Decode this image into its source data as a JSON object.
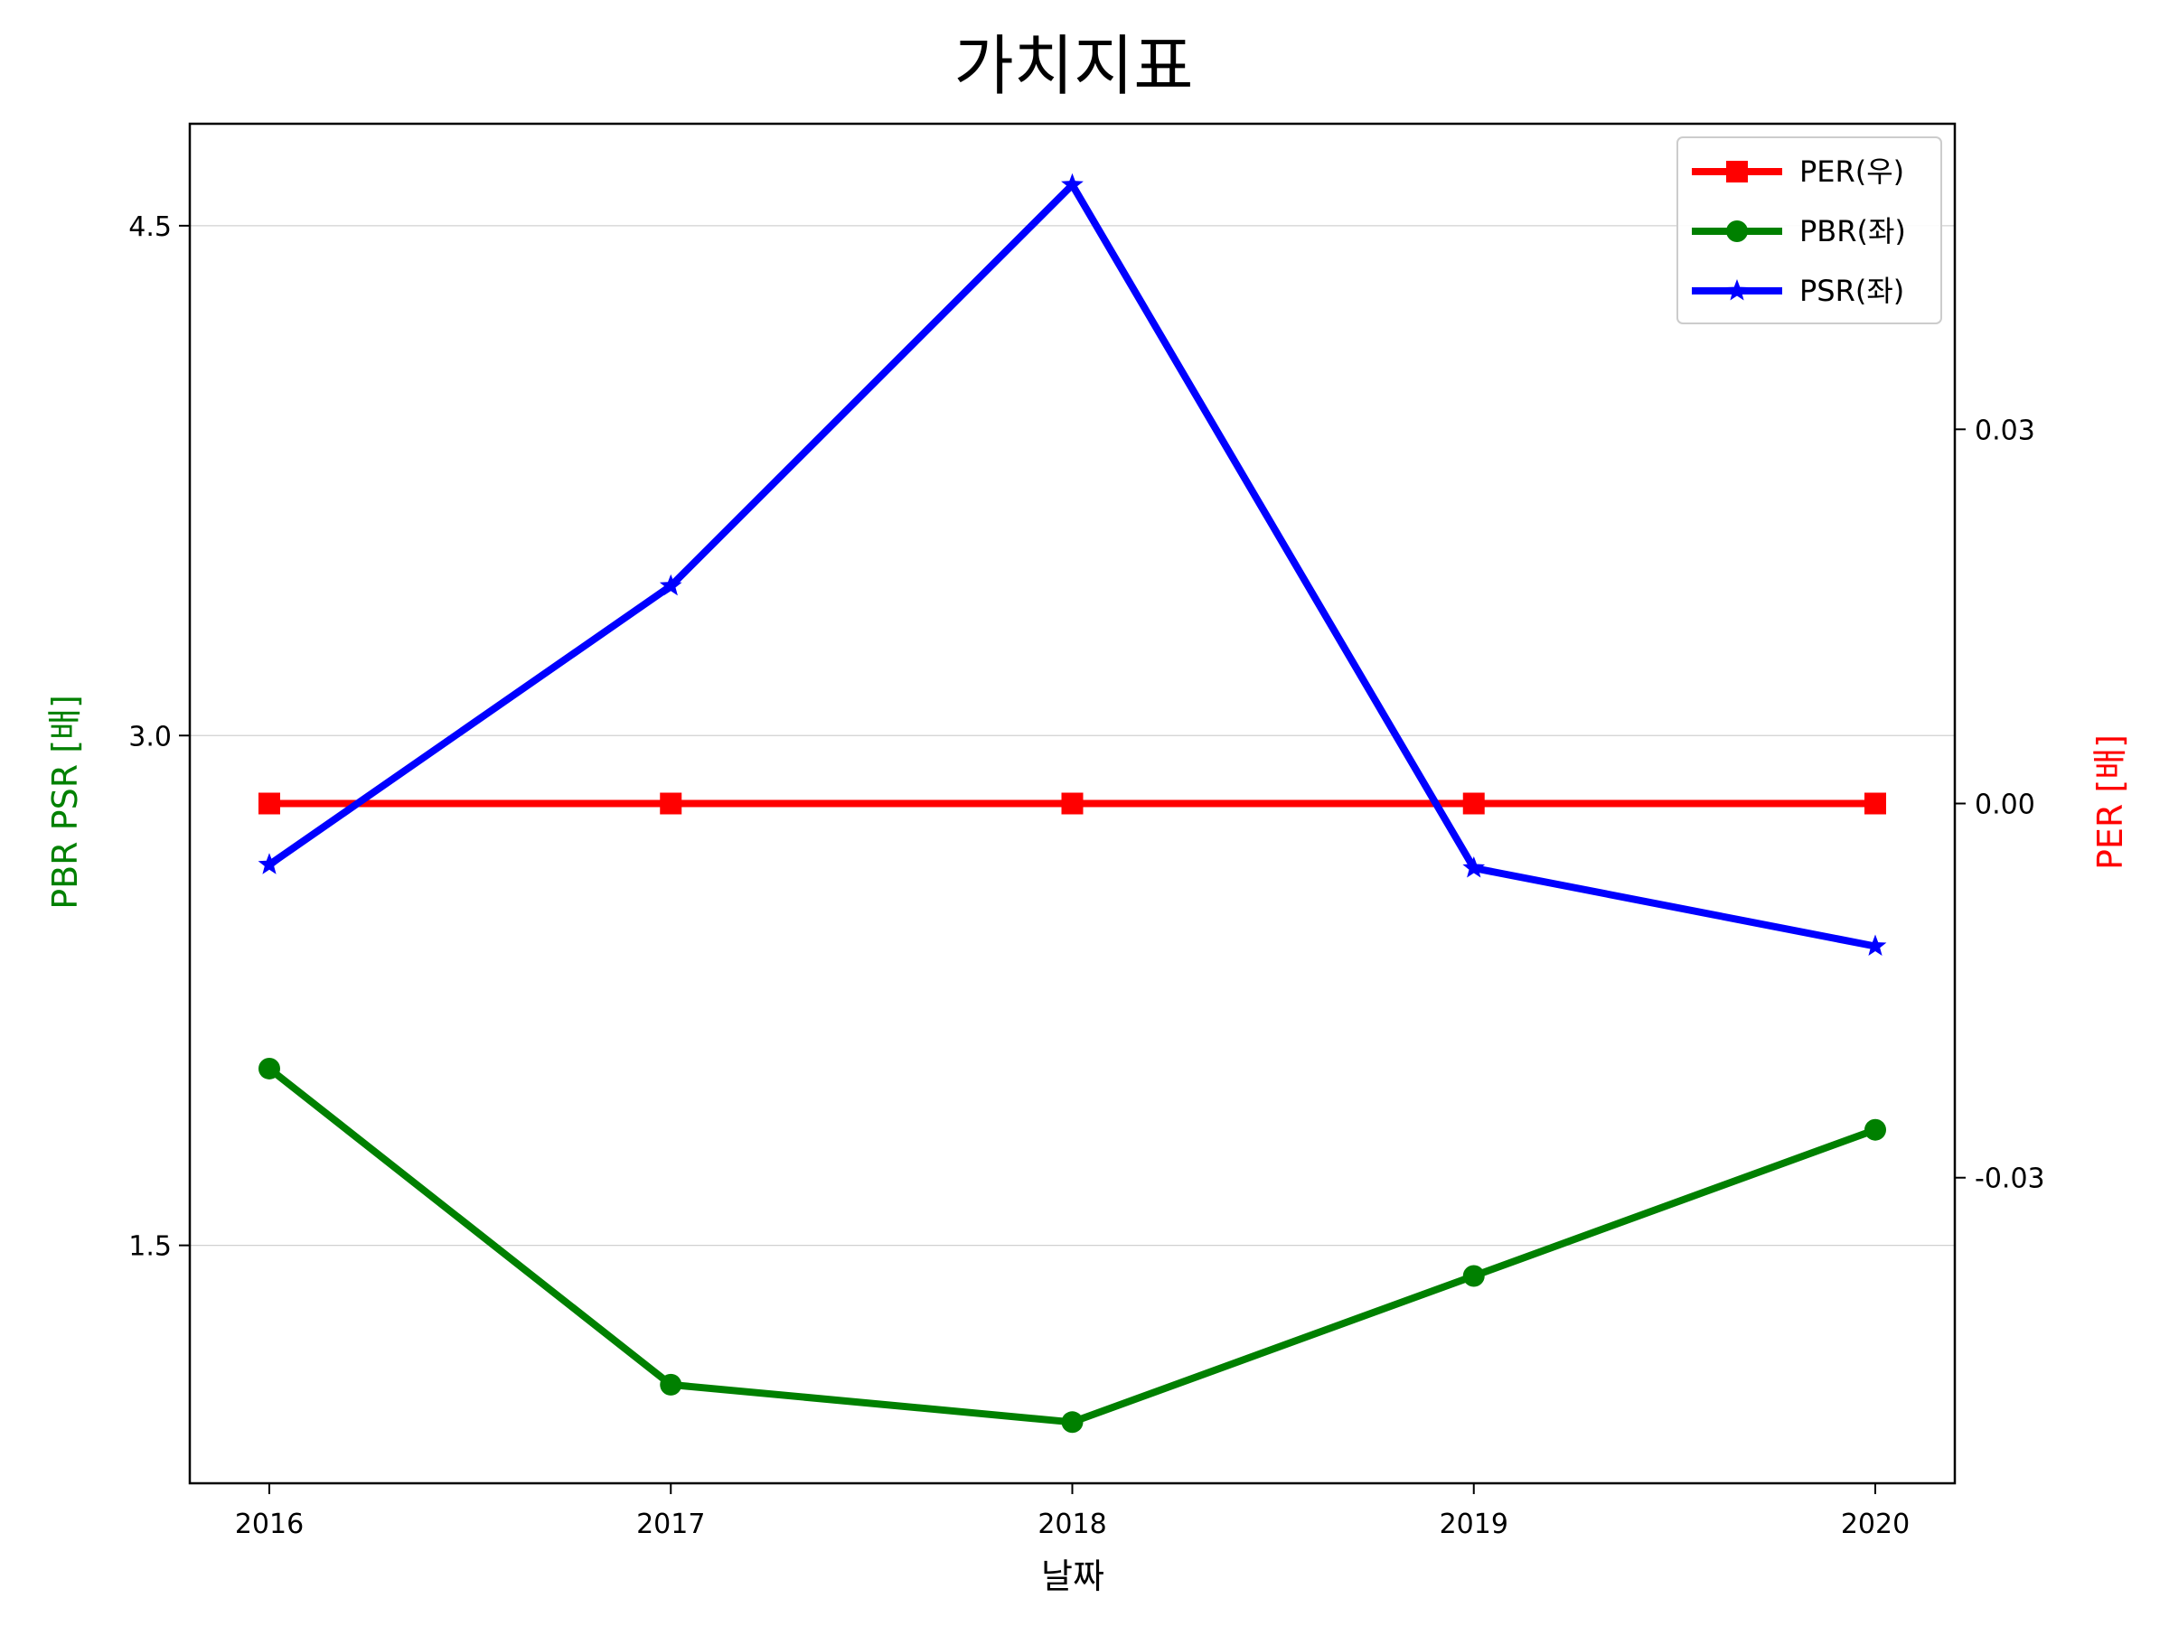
{
  "chart_data": {
    "type": "line",
    "title": "가치지표",
    "xlabel": "날짜",
    "ylabel_left": "PBR PSR [배]",
    "ylabel_right": "PER [배]",
    "categories": [
      "2016",
      "2017",
      "2018",
      "2019",
      "2020"
    ],
    "left_axis": {
      "ylim": [
        0.8,
        4.8
      ],
      "ticks": [
        1.5,
        3.0,
        4.5
      ],
      "tick_labels": [
        "1.5",
        "3.0",
        "4.5"
      ],
      "grid": true
    },
    "right_axis": {
      "ylim": [
        -0.0545,
        0.0545
      ],
      "ticks": [
        -0.03,
        0.0,
        0.03
      ],
      "tick_labels": [
        "-0.03",
        "0.00",
        "0.03"
      ]
    },
    "series": [
      {
        "name": "PER(우)",
        "axis": "right",
        "color": "#ff0000",
        "marker": "square",
        "values": [
          0.0,
          0.0,
          0.0,
          0.0,
          0.0
        ]
      },
      {
        "name": "PBR(좌)",
        "axis": "left",
        "color": "#008000",
        "marker": "circle",
        "values": [
          2.02,
          1.09,
          0.98,
          1.41,
          1.84
        ]
      },
      {
        "name": "PSR(좌)",
        "axis": "left",
        "color": "#0000ff",
        "marker": "star",
        "values": [
          2.62,
          3.44,
          4.62,
          2.61,
          2.38
        ]
      }
    ],
    "legend_position": "top-right",
    "colors": {
      "left_label": "#008000",
      "right_label": "#ff0000",
      "grid": "#d0d0d0",
      "axis": "#000000"
    }
  }
}
